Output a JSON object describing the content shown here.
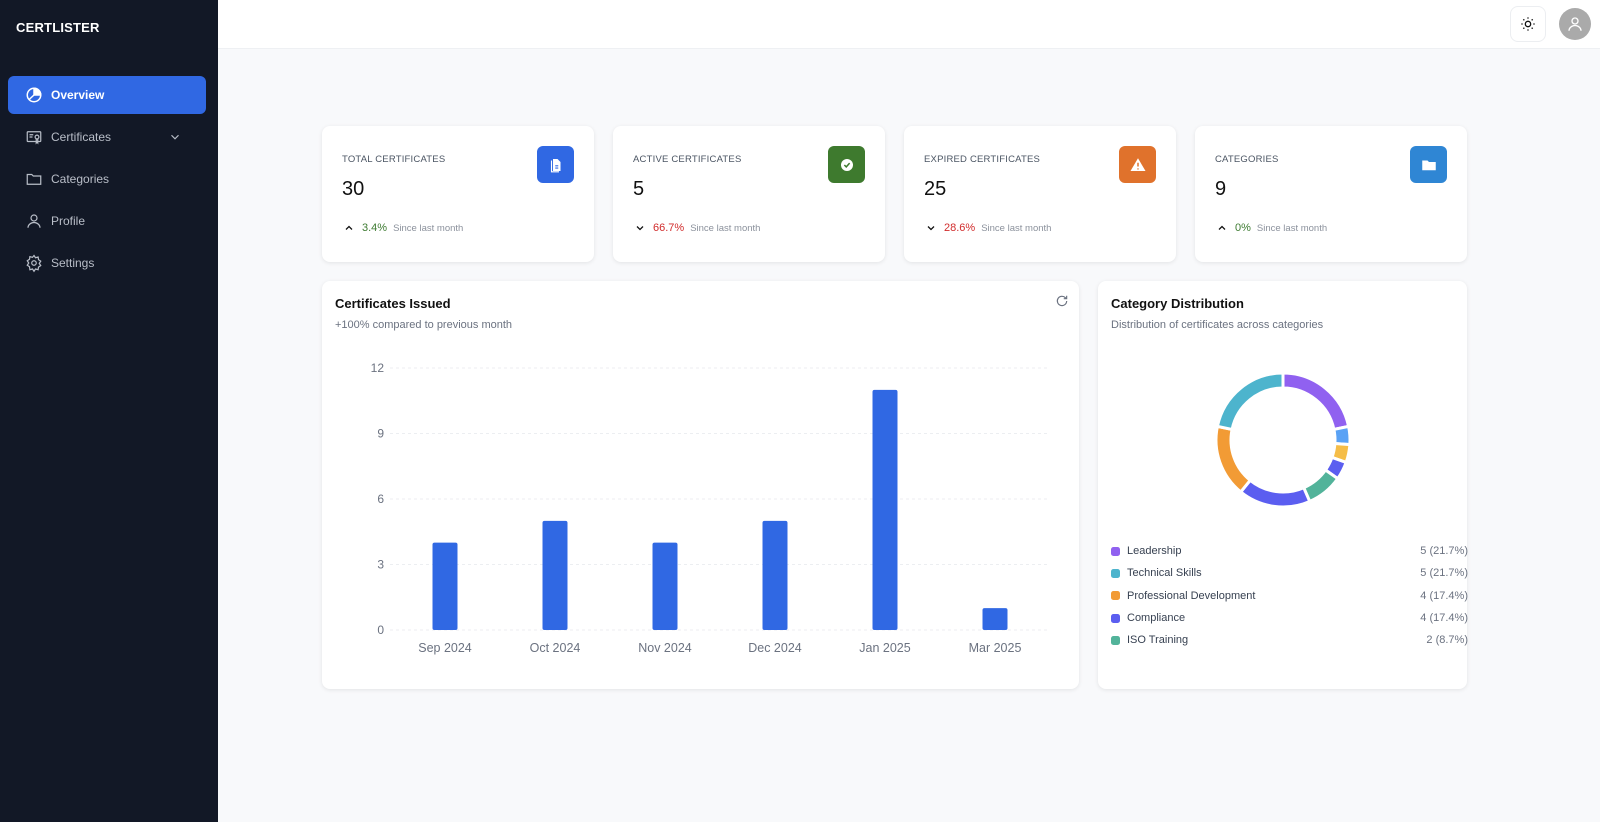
{
  "app": {
    "brand": "CERTLISTER"
  },
  "sidebar": {
    "items": [
      {
        "label": "Overview",
        "icon": "pie-chart-icon",
        "active": true
      },
      {
        "label": "Certificates",
        "icon": "certificate-icon",
        "has_submenu": true
      },
      {
        "label": "Categories",
        "icon": "folder-icon"
      },
      {
        "label": "Profile",
        "icon": "user-icon"
      },
      {
        "label": "Settings",
        "icon": "gear-icon"
      }
    ]
  },
  "header": {
    "theme_icon": "sun-icon",
    "avatar_icon": "user-icon"
  },
  "stats": [
    {
      "label": "TOTAL CERTIFICATES",
      "value": "30",
      "trend": "up",
      "change": "3.4%",
      "since": "Since last month",
      "color": "#3068e3",
      "icon": "document-icon"
    },
    {
      "label": "ACTIVE CERTIFICATES",
      "value": "5",
      "trend": "down",
      "change": "66.7%",
      "since": "Since last month",
      "color": "#3e7a2e",
      "icon": "check-circle-icon"
    },
    {
      "label": "EXPIRED CERTIFICATES",
      "value": "25",
      "trend": "down",
      "change": "28.6%",
      "since": "Since last month",
      "color": "#e0722c",
      "icon": "warning-icon"
    },
    {
      "label": "CATEGORIES",
      "value": "9",
      "trend": "up",
      "change": "0%",
      "since": "Since last month",
      "color": "#2f86d4",
      "icon": "folder-icon"
    }
  ],
  "issued": {
    "title": "Certificates Issued",
    "subtitle": "+100% compared to previous month",
    "refresh_icon": "refresh-icon"
  },
  "distribution": {
    "title": "Category Distribution",
    "subtitle": "Distribution of certificates across categories",
    "legend": [
      {
        "name": "Leadership",
        "value": "5 (21.7%)",
        "color": "#9061f0"
      },
      {
        "name": "Technical Skills",
        "value": "5 (21.7%)",
        "color": "#4db4cd"
      },
      {
        "name": "Professional Development",
        "value": "4 (17.4%)",
        "color": "#f29b35"
      },
      {
        "name": "Compliance",
        "value": "4 (17.4%)",
        "color": "#5b5ef0"
      },
      {
        "name": "ISO Training",
        "value": "2 (8.7%)",
        "color": "#52b39a"
      }
    ]
  },
  "chart_data": [
    {
      "type": "bar",
      "categories": [
        "Sep 2024",
        "Oct 2024",
        "Nov 2024",
        "Dec 2024",
        "Jan 2025",
        "Mar 2025"
      ],
      "values": [
        4,
        5,
        4,
        5,
        11,
        1
      ],
      "ylim": [
        0,
        12
      ],
      "yticks": [
        0,
        3,
        6,
        9,
        12
      ],
      "grid": true,
      "color": "#3068e3"
    },
    {
      "type": "pie",
      "donut": true,
      "slices": [
        {
          "name": "Leadership",
          "value": 5,
          "color": "#9061f0"
        },
        {
          "name": "",
          "value": 1,
          "color": "#5aa2f5"
        },
        {
          "name": "",
          "value": 1,
          "color": "#f5bd48"
        },
        {
          "name": "",
          "value": 1,
          "color": "#5b5ef0"
        },
        {
          "name": "ISO Training",
          "value": 2,
          "color": "#52b39a"
        },
        {
          "name": "Compliance",
          "value": 4,
          "color": "#5b5ef0"
        },
        {
          "name": "Professional Development",
          "value": 4,
          "color": "#f29b35"
        },
        {
          "name": "Technical Skills",
          "value": 5,
          "color": "#4db4cd"
        }
      ]
    }
  ]
}
